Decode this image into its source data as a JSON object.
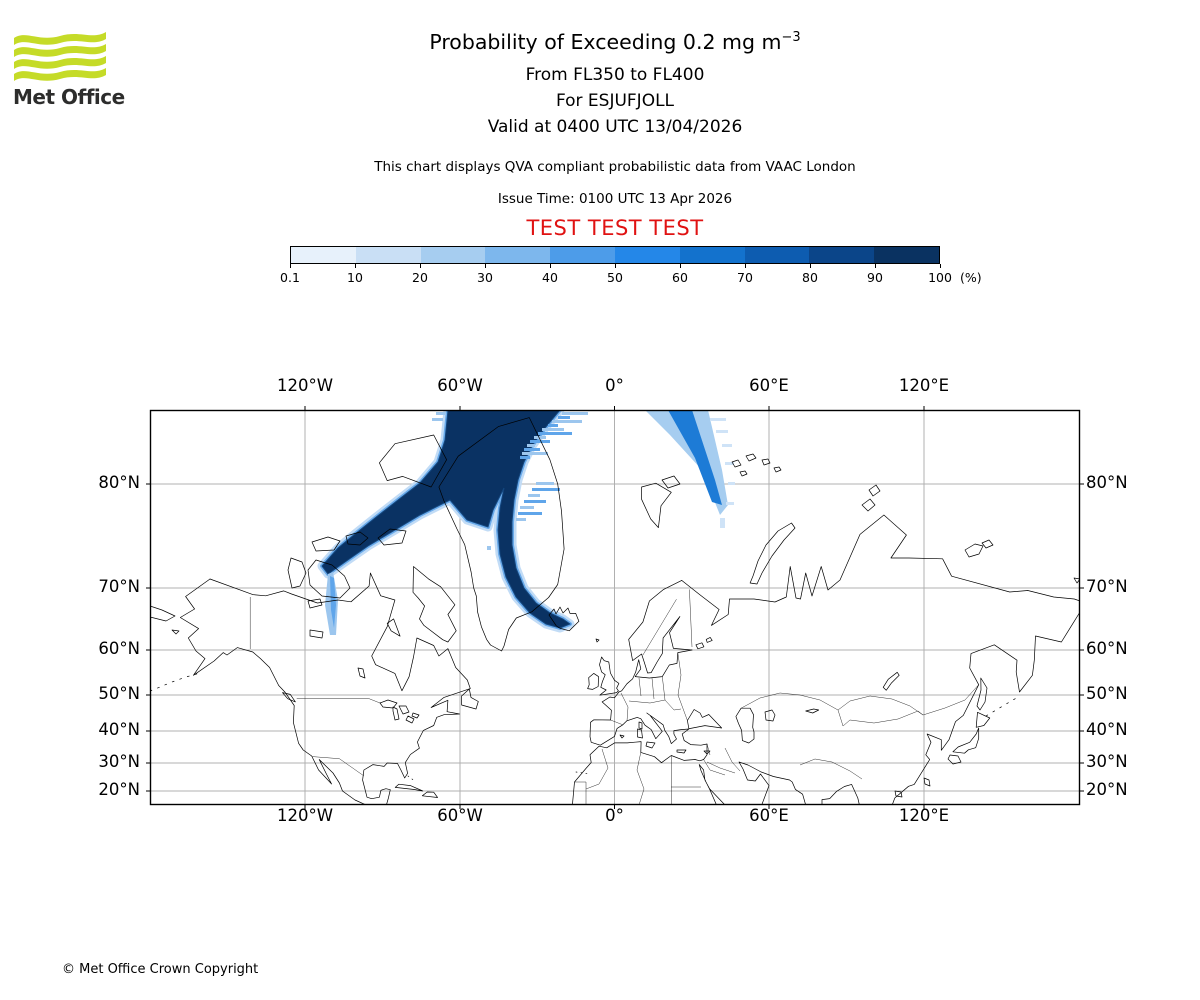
{
  "brand": {
    "name": "Met Office",
    "logo_green": "#c5db28"
  },
  "header": {
    "title_prefix": "Probability of Exceeding 0.2 mg m",
    "title_exponent": "−3",
    "subtitle_levels": "From FL350 to FL400",
    "subtitle_volcano": "For ESJUFJOLL",
    "subtitle_valid": "Valid at 0400 UTC 13/04/2026",
    "note": "This chart displays QVA compliant probabilistic data from VAAC London",
    "issue_time": "Issue Time: 0100 UTC 13 Apr 2026",
    "test_banner": "TEST TEST TEST",
    "test_color": "#e01212"
  },
  "colorbar": {
    "ticks": [
      "0.1",
      "10",
      "20",
      "30",
      "40",
      "50",
      "60",
      "70",
      "80",
      "90",
      "100"
    ],
    "unit": "(%)",
    "colors": [
      "#e7f1fb",
      "#c9dff5",
      "#a6cdf0",
      "#7db7ed",
      "#4d9ce9",
      "#2487e8",
      "#1372cd",
      "#0d5cb0",
      "#0b4589",
      "#0a3261"
    ]
  },
  "map": {
    "top_lon_labels": [
      "120°W",
      "60°W",
      "0°",
      "60°E",
      "120°E"
    ],
    "bottom_lon_labels": [
      "120°W",
      "60°W",
      "0°",
      "60°E",
      "120°E"
    ],
    "left_lat_labels": [
      "80°N",
      "70°N",
      "60°N",
      "50°N",
      "40°N",
      "30°N",
      "20°N"
    ],
    "right_lat_labels": [
      "80°N",
      "70°N",
      "60°N",
      "50°N",
      "40°N",
      "30°N",
      "20°N"
    ]
  },
  "footer": {
    "copyright": "© Met Office Crown Copyright"
  },
  "chart_data": {
    "type": "heatmap",
    "title": "Probability of Exceeding 0.2 mg m−3",
    "subtitle": [
      "From FL350 to FL400",
      "For ESJUFJOLL",
      "Valid at 0400 UTC 13/04/2026"
    ],
    "source": "VAAC London QVA probabilistic data",
    "issue_time": "0100 UTC 13 Apr 2026",
    "projection": "mercator",
    "lon_range_deg": [
      -180,
      180
    ],
    "lat_range_deg": [
      15.5,
      84
    ],
    "lon_ticks_deg": [
      -120,
      -60,
      0,
      60,
      120
    ],
    "lat_ticks_deg": [
      80,
      70,
      60,
      50,
      40,
      30,
      20
    ],
    "probability_bins_percent": [
      0.1,
      10,
      20,
      30,
      40,
      50,
      60,
      70,
      80,
      90,
      100
    ],
    "legend_unit": "%",
    "grid": true,
    "features": [
      {
        "name": "main-plume",
        "probability_percent": "90-100",
        "description": "Dense plume over the Canadian Arctic Archipelago and northern Greenland from about 110°W to 20°W near the pole, with a southwest arm reaching ~70°N 115°W and a narrow curved filament running south along east Greenland ending at Iceland (ESJUFJOLL source, ~64°N 17°W)"
      },
      {
        "name": "secondary-streak",
        "probability_percent": "10-60",
        "description": "Fainter diagonal streak from the top of the map near 5°E-35°E descending southeast toward Franz Josef Land, fading out near 80°N 45°E"
      }
    ]
  }
}
